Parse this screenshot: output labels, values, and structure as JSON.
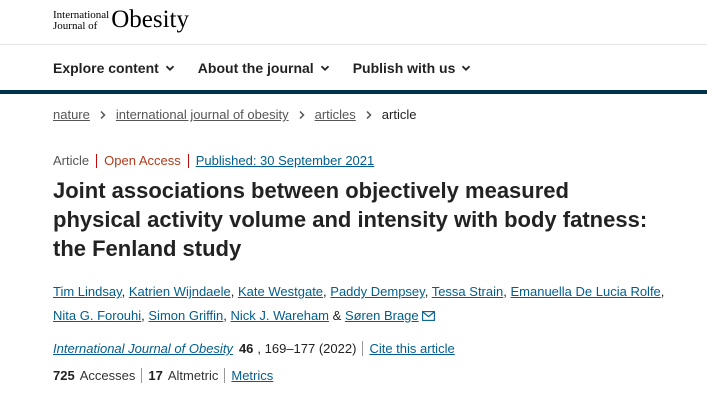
{
  "logo": {
    "small_line1": "International",
    "small_line2": "Journal of",
    "big": "Obesity"
  },
  "nav": {
    "items": [
      {
        "label": "Explore content"
      },
      {
        "label": "About the journal"
      },
      {
        "label": "Publish with us"
      }
    ]
  },
  "breadcrumb": [
    "nature",
    "international journal of obesity",
    "articles",
    "article"
  ],
  "meta": {
    "type": "Article",
    "access": "Open Access",
    "published": "Published: 30 September 2021"
  },
  "title": "Joint associations between objectively measured physical activity volume and intensity with body fatness: the Fenland study",
  "authors": [
    "Tim Lindsay",
    "Katrien Wijndaele",
    "Kate Westgate",
    "Paddy Dempsey",
    "Tessa Strain",
    "Emanuella De Lucia Rolfe",
    "Nita G. Forouhi",
    "Simon Griffin",
    "Nick J. Wareham",
    "Søren Brage"
  ],
  "author_joiner": "&",
  "citation": {
    "journal": "International Journal of Obesity",
    "volume": "46",
    "pages": ", 169–177 (2022)",
    "cite_label": "Cite this article"
  },
  "metrics": {
    "accesses_value": "725",
    "accesses_label": "Accesses",
    "altmetric_value": "17",
    "altmetric_label": "Altmetric",
    "metrics_link": "Metrics"
  },
  "colors": {
    "link": "#025e8d",
    "nav_rule": "#01324b",
    "open_access": "#b33b1a",
    "meta_separator": "#c40606"
  }
}
